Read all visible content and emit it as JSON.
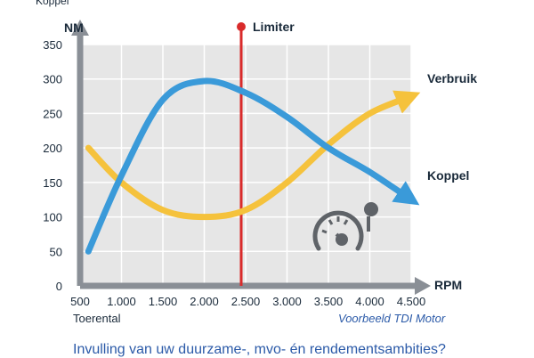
{
  "top_label": "Koppel",
  "footer": {
    "left": "Toerental",
    "right": "Voorbeeld TDI Motor",
    "caption": "Invulling van uw duurzame-, mvo- én rendementsambities?"
  },
  "gauge_icon": "speedometer-icon",
  "colors": {
    "panel": "#e6e6e6",
    "grid": "#ffffff",
    "axis": "#8a8f96",
    "torque": "#3a9ad9",
    "consumption": "#f5c23c",
    "limiter": "#d92b2b",
    "text": "#1a2a3a"
  },
  "chart_data": {
    "type": "line",
    "ylabel": "NM",
    "xlabel": "RPM",
    "xlim": [
      500,
      4500
    ],
    "ylim": [
      0,
      350
    ],
    "x_ticks": [
      "500",
      "1.000",
      "1.500",
      "2.000",
      "2.500",
      "3.000",
      "3.500",
      "4.000",
      "4.500"
    ],
    "y_ticks": [
      "0",
      "50",
      "100",
      "150",
      "200",
      "250",
      "300",
      "350"
    ],
    "grid": true,
    "series": [
      {
        "name": "Koppel",
        "color": "#3a9ad9",
        "x": [
          600,
          1000,
          1500,
          2000,
          2500,
          3000,
          3500,
          4000,
          4500
        ],
        "y": [
          50,
          160,
          270,
          297,
          280,
          245,
          200,
          165,
          125
        ]
      },
      {
        "name": "Verbruik",
        "color": "#f5c23c",
        "x": [
          600,
          1000,
          1500,
          2000,
          2500,
          3000,
          3500,
          4000,
          4500
        ],
        "y": [
          200,
          150,
          110,
          100,
          110,
          150,
          205,
          250,
          275
        ]
      }
    ],
    "annotations": [
      {
        "text": "Limiter",
        "x": 2500
      }
    ]
  }
}
